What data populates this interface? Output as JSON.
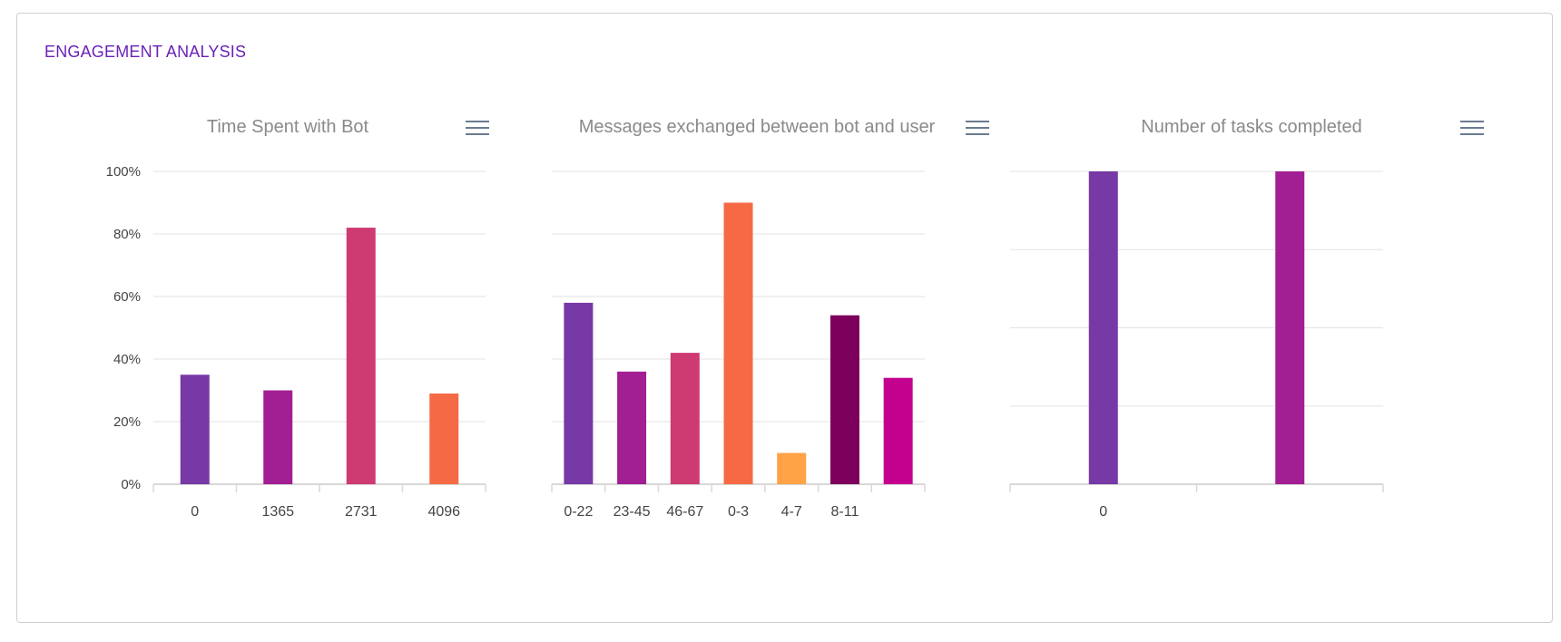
{
  "section": {
    "title": "ENGAGEMENT ANALYSIS"
  },
  "colors": {
    "purple": "#7639a6",
    "magenta": "#a21e93",
    "pink": "#ce3a72",
    "orange": "#f56a45",
    "amber": "#ffa346",
    "plum": "#7c005c",
    "fuchsia": "#c4008f",
    "grid": "#e3e3e3",
    "axis": "#d8d8d8",
    "label": "#444444",
    "title": "#8a8a8a",
    "accent": "#6a22b8"
  },
  "charts": [
    {
      "menu_icon": "hamburger-menu-icon"
    },
    {
      "menu_icon": "hamburger-menu-icon"
    },
    {
      "menu_icon": "hamburger-menu-icon"
    }
  ],
  "chart_data": [
    {
      "type": "bar",
      "title": "Time Spent with Bot",
      "categories": [
        "0",
        "1365",
        "2731",
        "4096"
      ],
      "values": [
        35,
        30,
        82,
        29
      ],
      "bar_colors": [
        "#7639a6",
        "#a21e93",
        "#ce3a72",
        "#f56a45"
      ],
      "ylim": [
        0,
        100
      ],
      "yticks": [
        "0%",
        "20%",
        "40%",
        "60%",
        "80%",
        "100%"
      ],
      "grid": true
    },
    {
      "type": "bar",
      "title": "Messages exchanged between bot and user",
      "categories": [
        "0-22",
        "23-45",
        "46-67",
        "0-3",
        "4-7",
        "8-11",
        ""
      ],
      "values": [
        58,
        36,
        42,
        90,
        10,
        54,
        34
      ],
      "bar_colors": [
        "#7639a6",
        "#a21e93",
        "#ce3a72",
        "#f56a45",
        "#ffa346",
        "#7c005c",
        "#c4008f"
      ],
      "ylim": [
        0,
        100
      ],
      "grid": true
    },
    {
      "type": "bar",
      "title": "Number of tasks completed",
      "categories": [
        "0",
        ""
      ],
      "values": [
        100,
        100
      ],
      "bar_colors": [
        "#7639a6",
        "#a21e93"
      ],
      "ylim": [
        0,
        100
      ],
      "grid": true
    }
  ]
}
